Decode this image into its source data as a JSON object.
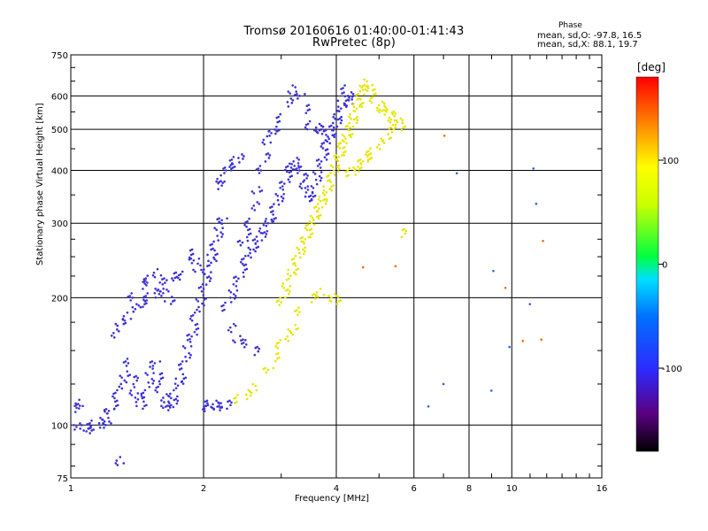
{
  "chart_data": {
    "type": "scatter",
    "title": "Tromsø 20160616 01:40:00-01:41:43",
    "subtitle": "RwPretec (8p)",
    "xlabel": "Frequency [MHz]",
    "ylabel": "Stationary phase Virtual Height [km]",
    "x_scale": "log",
    "y_scale": "log",
    "xlim": [
      1,
      16
    ],
    "ylim": [
      75,
      750
    ],
    "x_ticks": [
      "1",
      "2",
      "4",
      "6",
      "8",
      "10",
      "16"
    ],
    "y_ticks": [
      "75",
      "100",
      "200",
      "300",
      "400",
      "500",
      "600",
      "750"
    ],
    "grid": true,
    "phase_stats": {
      "heading": "Phase",
      "o_mode": "mean, sd,O: -97.8, 16.5",
      "x_mode": "mean, sd,X:  88.1, 19.7"
    },
    "colorbar": {
      "unit": "[deg]",
      "tick_labels": [
        "100",
        "0",
        "-100"
      ],
      "tick_values": [
        100,
        0,
        -100
      ],
      "range": [
        -180,
        180
      ]
    },
    "series": [
      {
        "mode": "O",
        "color": "#3a2fd6",
        "points": [
          [
            1.0,
            108
          ],
          [
            1.02,
            110
          ],
          [
            1.05,
            112
          ],
          [
            1.03,
            99
          ],
          [
            1.08,
            99
          ],
          [
            1.12,
            100
          ],
          [
            1.16,
            101
          ],
          [
            1.2,
            105
          ],
          [
            1.22,
            108
          ],
          [
            1.25,
            112
          ],
          [
            1.28,
            118
          ],
          [
            1.3,
            125
          ],
          [
            1.33,
            132
          ],
          [
            1.35,
            140
          ],
          [
            1.38,
            128
          ],
          [
            1.4,
            120
          ],
          [
            1.42,
            115
          ],
          [
            1.45,
            112
          ],
          [
            1.48,
            118
          ],
          [
            1.5,
            126
          ],
          [
            1.52,
            134
          ],
          [
            1.55,
            140
          ],
          [
            1.58,
            130
          ],
          [
            1.6,
            122
          ],
          [
            1.62,
            116
          ],
          [
            1.65,
            112
          ],
          [
            1.68,
            110
          ],
          [
            1.7,
            113
          ],
          [
            1.72,
            118
          ],
          [
            1.75,
            124
          ],
          [
            1.78,
            130
          ],
          [
            1.8,
            138
          ],
          [
            1.82,
            145
          ],
          [
            1.85,
            155
          ],
          [
            1.88,
            162
          ],
          [
            1.9,
            170
          ],
          [
            1.92,
            180
          ],
          [
            1.95,
            190
          ],
          [
            1.98,
            200
          ],
          [
            2.0,
            210
          ],
          [
            2.02,
            220
          ],
          [
            2.05,
            232
          ],
          [
            2.08,
            242
          ],
          [
            2.1,
            255
          ],
          [
            2.12,
            265
          ],
          [
            2.15,
            280
          ],
          [
            2.18,
            295
          ],
          [
            2.2,
            305
          ],
          [
            2.0,
            112
          ],
          [
            2.05,
            110
          ],
          [
            2.1,
            112
          ],
          [
            2.15,
            111
          ],
          [
            2.2,
            110
          ],
          [
            2.25,
            112
          ],
          [
            1.35,
            180
          ],
          [
            1.4,
            188
          ],
          [
            1.45,
            195
          ],
          [
            1.5,
            200
          ],
          [
            1.55,
            205
          ],
          [
            1.6,
            212
          ],
          [
            1.65,
            220
          ],
          [
            1.7,
            225
          ],
          [
            1.5,
            220
          ],
          [
            1.25,
            165
          ],
          [
            1.3,
            175
          ],
          [
            1.38,
            200
          ],
          [
            1.45,
            215
          ],
          [
            1.58,
            228
          ],
          [
            1.62,
            205
          ],
          [
            1.68,
            198
          ],
          [
            2.25,
            190
          ],
          [
            2.3,
            200
          ],
          [
            2.35,
            210
          ],
          [
            2.4,
            222
          ],
          [
            2.45,
            235
          ],
          [
            2.5,
            245
          ],
          [
            2.55,
            255
          ],
          [
            2.6,
            265
          ],
          [
            2.65,
            272
          ],
          [
            2.7,
            280
          ],
          [
            2.75,
            290
          ],
          [
            2.8,
            300
          ],
          [
            2.85,
            310
          ],
          [
            2.9,
            325
          ],
          [
            2.95,
            340
          ],
          [
            3.0,
            355
          ],
          [
            3.05,
            372
          ],
          [
            3.1,
            390
          ],
          [
            3.15,
            405
          ],
          [
            3.2,
            420
          ],
          [
            3.25,
            410
          ],
          [
            3.3,
            400
          ],
          [
            3.35,
            385
          ],
          [
            3.4,
            370
          ],
          [
            3.45,
            360
          ],
          [
            3.5,
            350
          ],
          [
            3.55,
            345
          ],
          [
            3.6,
            380
          ],
          [
            3.65,
            400
          ],
          [
            3.7,
            420
          ],
          [
            3.75,
            440
          ],
          [
            3.8,
            460
          ],
          [
            3.85,
            475
          ],
          [
            3.9,
            490
          ],
          [
            3.95,
            505
          ],
          [
            4.0,
            520
          ],
          [
            4.05,
            540
          ],
          [
            4.1,
            560
          ],
          [
            4.15,
            590
          ],
          [
            4.2,
            620
          ],
          [
            4.25,
            600
          ],
          [
            4.3,
            580
          ],
          [
            2.45,
            270
          ],
          [
            2.5,
            285
          ],
          [
            2.55,
            300
          ],
          [
            2.6,
            330
          ],
          [
            2.65,
            360
          ],
          [
            2.7,
            400
          ],
          [
            2.75,
            430
          ],
          [
            2.8,
            470
          ],
          [
            2.85,
            490
          ],
          [
            2.9,
            500
          ],
          [
            3.0,
            530
          ],
          [
            3.1,
            580
          ],
          [
            3.2,
            620
          ],
          [
            3.3,
            600
          ],
          [
            3.4,
            560
          ],
          [
            3.5,
            510
          ],
          [
            3.6,
            505
          ],
          [
            3.7,
            500
          ],
          [
            3.75,
            495
          ],
          [
            2.15,
            370
          ],
          [
            2.2,
            380
          ],
          [
            2.25,
            400
          ],
          [
            2.3,
            410
          ],
          [
            2.35,
            420
          ],
          [
            2.4,
            428
          ],
          [
            1.95,
            235
          ],
          [
            1.9,
            245
          ],
          [
            1.85,
            255
          ],
          [
            1.8,
            225
          ],
          [
            2.3,
            170
          ],
          [
            2.4,
            160
          ],
          [
            2.5,
            155
          ],
          [
            2.6,
            150
          ],
          [
            1.3,
            82
          ],
          [
            1.2,
            100
          ],
          [
            1.1,
            98
          ]
        ]
      },
      {
        "mode": "X",
        "color": "#e6e600",
        "points": [
          [
            3.0,
            195
          ],
          [
            3.05,
            205
          ],
          [
            3.1,
            215
          ],
          [
            3.15,
            225
          ],
          [
            3.2,
            235
          ],
          [
            3.25,
            245
          ],
          [
            3.3,
            255
          ],
          [
            3.35,
            265
          ],
          [
            3.4,
            275
          ],
          [
            3.45,
            285
          ],
          [
            3.5,
            295
          ],
          [
            3.55,
            305
          ],
          [
            3.6,
            315
          ],
          [
            3.65,
            325
          ],
          [
            3.7,
            335
          ],
          [
            3.75,
            345
          ],
          [
            3.8,
            355
          ],
          [
            3.85,
            370
          ],
          [
            3.9,
            385
          ],
          [
            3.95,
            400
          ],
          [
            4.0,
            415
          ],
          [
            4.05,
            430
          ],
          [
            4.1,
            445
          ],
          [
            4.15,
            460
          ],
          [
            4.2,
            475
          ],
          [
            4.25,
            490
          ],
          [
            4.3,
            505
          ],
          [
            4.35,
            520
          ],
          [
            4.4,
            540
          ],
          [
            4.45,
            560
          ],
          [
            4.5,
            580
          ],
          [
            4.55,
            600
          ],
          [
            4.6,
            620
          ],
          [
            4.65,
            640
          ],
          [
            4.7,
            630
          ],
          [
            4.8,
            610
          ],
          [
            4.9,
            590
          ],
          [
            5.0,
            570
          ],
          [
            5.1,
            560
          ],
          [
            5.2,
            550
          ],
          [
            5.3,
            540
          ],
          [
            5.4,
            530
          ],
          [
            5.5,
            520
          ],
          [
            5.6,
            510
          ],
          [
            2.4,
            115
          ],
          [
            2.5,
            118
          ],
          [
            2.6,
            122
          ],
          [
            2.8,
            135
          ],
          [
            2.9,
            145
          ],
          [
            3.0,
            155
          ],
          [
            3.1,
            162
          ],
          [
            3.2,
            170
          ],
          [
            3.3,
            185
          ],
          [
            3.5,
            200
          ],
          [
            3.7,
            205
          ],
          [
            3.9,
            200
          ],
          [
            4.0,
            198
          ],
          [
            4.3,
            395
          ],
          [
            4.4,
            400
          ],
          [
            4.5,
            410
          ],
          [
            4.6,
            420
          ],
          [
            4.7,
            430
          ],
          [
            4.8,
            440
          ],
          [
            5.0,
            460
          ],
          [
            5.2,
            480
          ],
          [
            5.4,
            500
          ],
          [
            5.6,
            285
          ]
        ]
      },
      {
        "mode": "scattered",
        "color": "#ff6600",
        "points": [
          [
            4.6,
            236
          ],
          [
            5.4,
            234
          ],
          [
            9.9,
            210
          ],
          [
            10.4,
            155
          ],
          [
            12.1,
            275
          ],
          [
            7.1,
            490
          ],
          [
            11.4,
            160
          ]
        ]
      },
      {
        "mode": "scattered",
        "color": "#2f5fe0",
        "points": [
          [
            7.0,
            125
          ],
          [
            9.0,
            228
          ],
          [
            9.2,
            120
          ],
          [
            9.7,
            150
          ],
          [
            11.3,
            195
          ],
          [
            11.3,
            410
          ],
          [
            11.1,
            335
          ],
          [
            6.5,
            108
          ],
          [
            7.3,
            390
          ]
        ]
      }
    ]
  }
}
